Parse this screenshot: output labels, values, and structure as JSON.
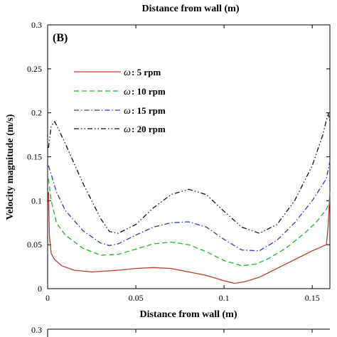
{
  "top_caption": "Distance from wall (m)",
  "chart_data": {
    "type": "line",
    "panel_label": "(B)",
    "xlabel": "Distance from wall (m)",
    "ylabel": "Velocity magnitude (m/s)",
    "xlim": [
      0,
      0.16
    ],
    "ylim": [
      0,
      0.3
    ],
    "xticks": [
      0,
      0.05,
      0.1,
      0.15
    ],
    "xtick_labels": [
      "0",
      "0.05",
      "0.1",
      "0.15"
    ],
    "yticks": [
      0,
      0.05,
      0.1,
      0.15,
      0.2,
      0.25,
      0.3
    ],
    "ytick_labels": [
      "0",
      "0.05",
      "0.1",
      "0.15",
      "0.2",
      "0.25",
      "0.3"
    ],
    "legend_position": "upper-left",
    "series": [
      {
        "name": "ω : 5 rpm",
        "legend_symbol": "ω",
        "legend_text": ": 5 rpm",
        "color": "#c0392b",
        "dash": "solid",
        "x": [
          0.0005,
          0.001,
          0.002,
          0.004,
          0.008,
          0.015,
          0.025,
          0.04,
          0.05,
          0.06,
          0.07,
          0.08,
          0.09,
          0.1,
          0.106,
          0.112,
          0.12,
          0.13,
          0.14,
          0.15,
          0.158,
          0.159,
          0.16
        ],
        "y": [
          0.11,
          0.06,
          0.04,
          0.033,
          0.026,
          0.021,
          0.019,
          0.021,
          0.023,
          0.024,
          0.023,
          0.019,
          0.015,
          0.009,
          0.006,
          0.008,
          0.013,
          0.023,
          0.033,
          0.043,
          0.05,
          0.07,
          0.11
        ]
      },
      {
        "name": "ω : 10 rpm",
        "legend_symbol": "ω",
        "legend_text": ": 10 rpm",
        "color": "#22b22c",
        "dash": "dashed",
        "x": [
          0.0005,
          0.002,
          0.005,
          0.01,
          0.02,
          0.03,
          0.04,
          0.05,
          0.06,
          0.07,
          0.08,
          0.09,
          0.1,
          0.11,
          0.118,
          0.125,
          0.135,
          0.145,
          0.152,
          0.158,
          0.16
        ],
        "y": [
          0.125,
          0.1,
          0.075,
          0.061,
          0.046,
          0.038,
          0.039,
          0.045,
          0.051,
          0.053,
          0.05,
          0.042,
          0.032,
          0.026,
          0.028,
          0.034,
          0.046,
          0.062,
          0.075,
          0.09,
          0.1
        ]
      },
      {
        "name": "ω : 15 rpm",
        "legend_symbol": "ω",
        "legend_text": ": 15 rpm",
        "color": "#2c35c4",
        "dash": "dashdot",
        "x": [
          0.0005,
          0.002,
          0.005,
          0.01,
          0.02,
          0.03,
          0.035,
          0.04,
          0.05,
          0.06,
          0.07,
          0.08,
          0.09,
          0.1,
          0.11,
          0.12,
          0.13,
          0.14,
          0.15,
          0.158,
          0.16
        ],
        "y": [
          0.14,
          0.13,
          0.11,
          0.089,
          0.066,
          0.052,
          0.049,
          0.051,
          0.061,
          0.07,
          0.075,
          0.076,
          0.07,
          0.056,
          0.044,
          0.043,
          0.055,
          0.075,
          0.1,
          0.125,
          0.145
        ]
      },
      {
        "name": "ω : 20 rpm",
        "legend_symbol": "ω",
        "legend_text": ": 20 rpm",
        "color": "#111111",
        "dash": "dashdotdot",
        "x": [
          0.0005,
          0.002,
          0.004,
          0.006,
          0.01,
          0.02,
          0.03,
          0.035,
          0.04,
          0.05,
          0.06,
          0.07,
          0.08,
          0.09,
          0.1,
          0.11,
          0.12,
          0.13,
          0.14,
          0.15,
          0.156,
          0.159,
          0.16
        ],
        "y": [
          0.16,
          0.185,
          0.19,
          0.182,
          0.165,
          0.12,
          0.08,
          0.065,
          0.063,
          0.073,
          0.092,
          0.107,
          0.113,
          0.107,
          0.088,
          0.07,
          0.063,
          0.073,
          0.1,
          0.14,
          0.175,
          0.2,
          0.19
        ]
      }
    ]
  },
  "next_panel": {
    "ytick_label": "0.3"
  }
}
